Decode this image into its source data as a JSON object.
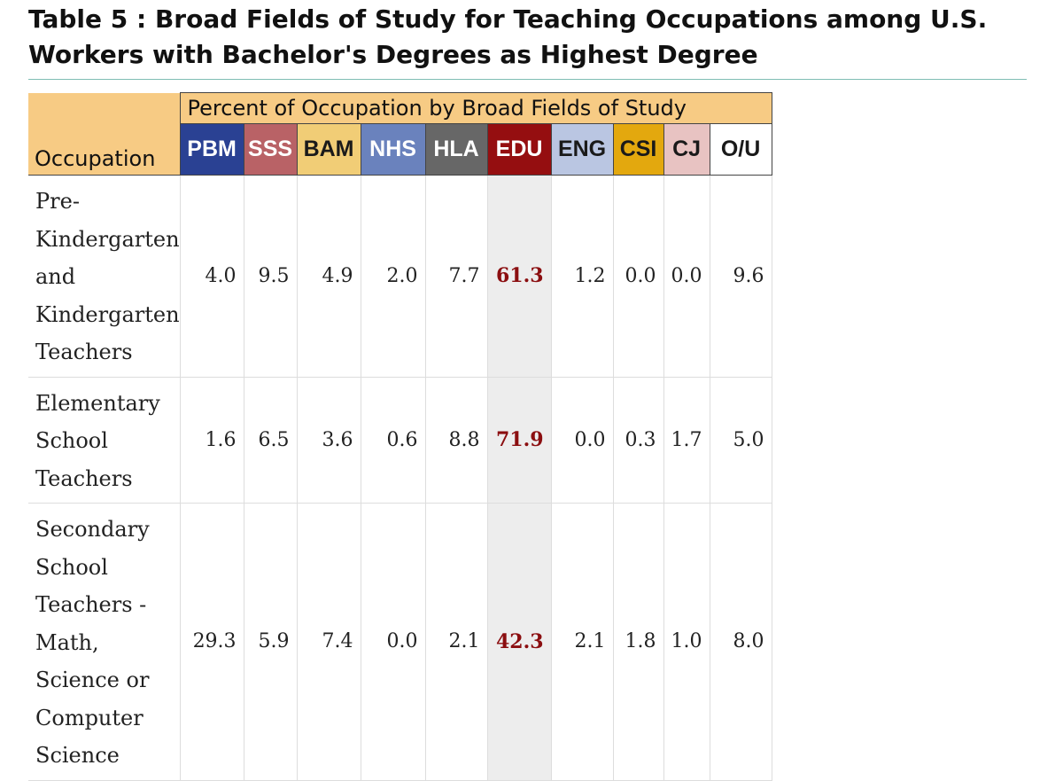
{
  "title": "Table 5 : Broad Fields of Study for Teaching Occupations among U.S. Workers with Bachelor's Degrees as Highest Degree",
  "table": {
    "occupation_header": "Occupation",
    "group_header": "Percent of Occupation by Broad Fields of Study",
    "columns": [
      {
        "code": "PBM",
        "bg": "#2a4193",
        "fg": "#ffffff"
      },
      {
        "code": "SSS",
        "bg": "#b96266",
        "fg": "#ffffff"
      },
      {
        "code": "BAM",
        "bg": "#f1cd76",
        "fg": "#1a1a1a"
      },
      {
        "code": "NHS",
        "bg": "#6a82bd",
        "fg": "#ffffff"
      },
      {
        "code": "HLA",
        "bg": "#676767",
        "fg": "#ffffff"
      },
      {
        "code": "EDU",
        "bg": "#950e10",
        "fg": "#ffffff"
      },
      {
        "code": "ENG",
        "bg": "#bac6e2",
        "fg": "#1a1a1a"
      },
      {
        "code": "CSI",
        "bg": "#e3a80e",
        "fg": "#1a1a1a"
      },
      {
        "code": "CJ",
        "bg": "#e8c3c2",
        "fg": "#1a1a1a"
      },
      {
        "code": "O/U",
        "bg": "#ffffff",
        "fg": "#1a1a1a"
      }
    ],
    "rows": [
      {
        "occupation": "Pre-Kindergarten and Kindergarten Teachers",
        "values": [
          "4.0",
          "9.5",
          "4.9",
          "2.0",
          "7.7",
          "61.3",
          "1.2",
          "0.0",
          "0.0",
          "9.6"
        ]
      },
      {
        "occupation": "Elementary School Teachers",
        "values": [
          "1.6",
          "6.5",
          "3.6",
          "0.6",
          "8.8",
          "71.9",
          "0.0",
          "0.3",
          "1.7",
          "5.0"
        ]
      },
      {
        "occupation": "Secondary School Teachers - Math, Science or Computer Science",
        "values": [
          "29.3",
          "5.9",
          "7.4",
          "0.0",
          "2.1",
          "42.3",
          "2.1",
          "1.8",
          "1.0",
          "8.0"
        ]
      }
    ]
  }
}
